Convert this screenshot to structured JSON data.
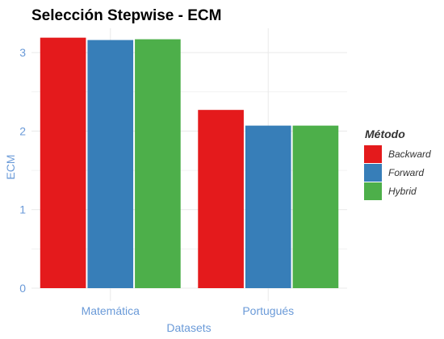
{
  "chart_data": {
    "type": "bar",
    "title": "Selección Stepwise - ECM",
    "xlabel": "Datasets",
    "ylabel": "ECM",
    "categories": [
      "Matemática",
      "Portugués"
    ],
    "series": [
      {
        "name": "Backward",
        "values": [
          3.19,
          2.27
        ],
        "color": "#E41A1C"
      },
      {
        "name": "Forward",
        "values": [
          3.16,
          2.07
        ],
        "color": "#377EB8"
      },
      {
        "name": "Hybrid",
        "values": [
          3.17,
          2.07
        ],
        "color": "#4DAF4A"
      }
    ],
    "ylim": [
      0,
      3.31
    ],
    "yticks": [
      0,
      1,
      2,
      3
    ],
    "grid": true,
    "legend": {
      "title": "Método",
      "position": "right"
    },
    "colors": {
      "axis_text": "#6A9AD8",
      "grid": "#EBEBEB"
    }
  }
}
